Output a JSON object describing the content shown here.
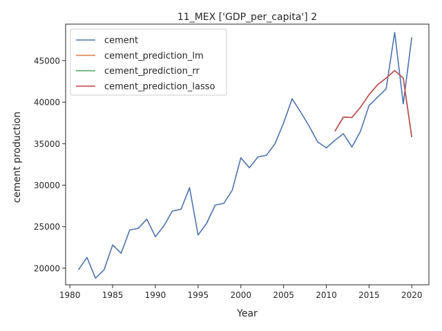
{
  "chart_data": {
    "type": "line",
    "title": "11_MEX ['GDP_per_capita'] 2",
    "xlabel": "Year",
    "ylabel": "cement production",
    "xlim": [
      1979.5,
      2022
    ],
    "ylim": [
      18000,
      49400
    ],
    "xticks": [
      1980,
      1985,
      1990,
      1995,
      2000,
      2005,
      2010,
      2015,
      2020
    ],
    "xtick_labels": [
      "1980",
      "1985",
      "1990",
      "1995",
      "2000",
      "2005",
      "2010",
      "2015",
      "2020"
    ],
    "yticks": [
      20000,
      25000,
      30000,
      35000,
      40000,
      45000
    ],
    "ytick_labels": [
      "20000",
      "25000",
      "30000",
      "35000",
      "40000",
      "45000"
    ],
    "grid": false,
    "legend_position": "top-left",
    "series": [
      {
        "name": "cement",
        "color": "#4c72b0",
        "x": [
          1981,
          1982,
          1983,
          1984,
          1985,
          1986,
          1987,
          1988,
          1989,
          1990,
          1991,
          1992,
          1993,
          1994,
          1995,
          1996,
          1997,
          1998,
          1999,
          2000,
          2001,
          2002,
          2003,
          2004,
          2005,
          2006,
          2007,
          2008,
          2009,
          2010,
          2011,
          2012,
          2013,
          2014,
          2015,
          2016,
          2017,
          2018,
          2019,
          2020
        ],
        "y": [
          19800,
          21300,
          18800,
          19800,
          22800,
          21800,
          24600,
          24800,
          25900,
          23800,
          25100,
          26900,
          27100,
          29700,
          24000,
          25400,
          27600,
          27800,
          29400,
          33300,
          32100,
          33400,
          33600,
          35000,
          37500,
          40400,
          38800,
          37100,
          35200,
          34500,
          35400,
          36200,
          34600,
          36500,
          39600,
          40600,
          41600,
          48400,
          39800,
          47800
        ]
      },
      {
        "name": "cement_prediction_lm",
        "color": "#dd8452",
        "x": [
          2011,
          2012,
          2013,
          2014,
          2015,
          2016,
          2017,
          2018,
          2019,
          2020
        ],
        "y": [
          36500,
          38200,
          38150,
          39400,
          40900,
          42100,
          42900,
          43800,
          42900,
          35800
        ]
      },
      {
        "name": "cement_prediction_rr",
        "color": "#55a868",
        "x": [
          2011,
          2012,
          2013,
          2014,
          2015,
          2016,
          2017,
          2018,
          2019,
          2020
        ],
        "y": [
          36500,
          38200,
          38150,
          39400,
          40900,
          42100,
          42900,
          43800,
          42900,
          35800
        ]
      },
      {
        "name": "cement_prediction_lasso",
        "color": "#c44e52",
        "x": [
          2011,
          2012,
          2013,
          2014,
          2015,
          2016,
          2017,
          2018,
          2019,
          2020
        ],
        "y": [
          36500,
          38200,
          38150,
          39400,
          40900,
          42100,
          42900,
          43800,
          42900,
          35800
        ]
      }
    ]
  }
}
